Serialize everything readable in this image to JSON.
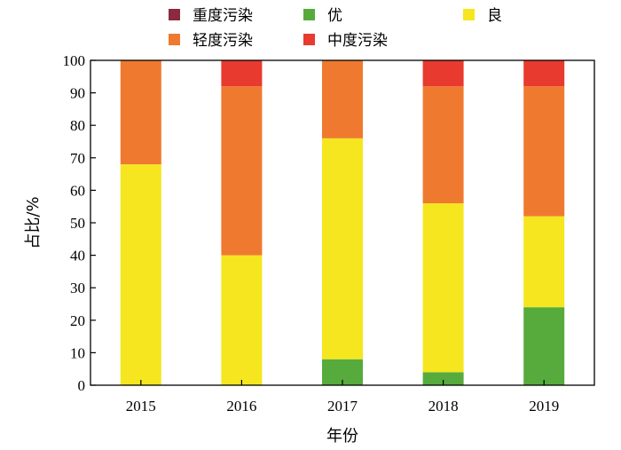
{
  "chart_data": {
    "type": "bar",
    "stacked": true,
    "title": "",
    "xlabel": "年份",
    "ylabel": "占比/%",
    "ylim": [
      0,
      100
    ],
    "yticks": [
      0,
      10,
      20,
      30,
      40,
      50,
      60,
      70,
      80,
      90,
      100
    ],
    "categories": [
      "2015",
      "2016",
      "2017",
      "2018",
      "2019"
    ],
    "legend_position": "top",
    "series": [
      {
        "name": "优",
        "color": "#56ab3c",
        "values": [
          0,
          0,
          8,
          4,
          24
        ]
      },
      {
        "name": "良",
        "color": "#f5e61f",
        "values": [
          68,
          40,
          68,
          52,
          28
        ]
      },
      {
        "name": "轻度污染",
        "color": "#ef7a2f",
        "values": [
          32,
          52,
          24,
          36,
          40
        ]
      },
      {
        "name": "中度污染",
        "color": "#e83a2f",
        "values": [
          0,
          8,
          0,
          8,
          8
        ]
      },
      {
        "name": "重度污染",
        "color": "#8b2a3f",
        "values": [
          0,
          0,
          0,
          0,
          0
        ]
      }
    ],
    "legend_order": [
      "重度污染",
      "轻度污染",
      "优",
      "中度污染",
      "良"
    ]
  }
}
